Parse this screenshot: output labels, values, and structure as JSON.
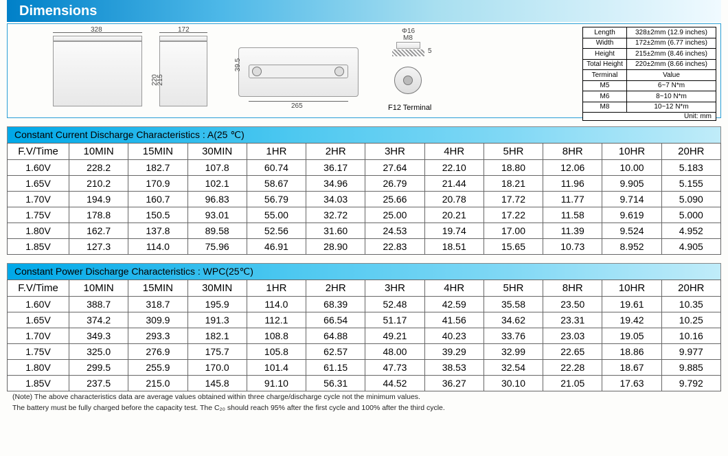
{
  "header": {
    "title": "Dimensions"
  },
  "diagram": {
    "w1": "328",
    "w2": "172",
    "h1": "220",
    "h2": "215",
    "len": "265",
    "phi": "Φ16",
    "m8": "M8",
    "off": "39.5",
    "off2": "5",
    "terminal": "F12 Terminal",
    "unit": "Unit: mm"
  },
  "dimTable": {
    "rows": [
      {
        "k": "Length",
        "v": "328±2mm (12.9 inches)"
      },
      {
        "k": "Width",
        "v": "172±2mm (6.77 inches)"
      },
      {
        "k": "Height",
        "v": "215±2mm (8.46 inches)"
      },
      {
        "k": "Total Height",
        "v": "220±2mm (8.66 inches)"
      }
    ],
    "termHeader": {
      "k": "Terminal",
      "v": "Value"
    },
    "terms": [
      {
        "k": "M5",
        "v": "6~7    N*m"
      },
      {
        "k": "M6",
        "v": "8~10   N*m"
      },
      {
        "k": "M8",
        "v": "10~12  N*m"
      }
    ]
  },
  "table1": {
    "title": "Constant Current Discharge Characteristics : A(25 ℃)",
    "head": [
      "F.V/Time",
      "10MIN",
      "15MIN",
      "30MIN",
      "1HR",
      "2HR",
      "3HR",
      "4HR",
      "5HR",
      "8HR",
      "10HR",
      "20HR"
    ],
    "rows": [
      [
        "1.60V",
        "228.2",
        "182.7",
        "107.8",
        "60.74",
        "36.17",
        "27.64",
        "22.10",
        "18.80",
        "12.06",
        "10.00",
        "5.183"
      ],
      [
        "1.65V",
        "210.2",
        "170.9",
        "102.1",
        "58.67",
        "34.96",
        "26.79",
        "21.44",
        "18.21",
        "11.96",
        "9.905",
        "5.155"
      ],
      [
        "1.70V",
        "194.9",
        "160.7",
        "96.83",
        "56.79",
        "34.03",
        "25.66",
        "20.78",
        "17.72",
        "11.77",
        "9.714",
        "5.090"
      ],
      [
        "1.75V",
        "178.8",
        "150.5",
        "93.01",
        "55.00",
        "32.72",
        "25.00",
        "20.21",
        "17.22",
        "11.58",
        "9.619",
        "5.000"
      ],
      [
        "1.80V",
        "162.7",
        "137.8",
        "89.58",
        "52.56",
        "31.60",
        "24.53",
        "19.74",
        "17.00",
        "11.39",
        "9.524",
        "4.952"
      ],
      [
        "1.85V",
        "127.3",
        "114.0",
        "75.96",
        "46.91",
        "28.90",
        "22.83",
        "18.51",
        "15.65",
        "10.73",
        "8.952",
        "4.905"
      ]
    ]
  },
  "table2": {
    "title": "Constant Power Discharge Characteristics : WPC(25℃)",
    "head": [
      "F.V/Time",
      "10MIN",
      "15MIN",
      "30MIN",
      "1HR",
      "2HR",
      "3HR",
      "4HR",
      "5HR",
      "8HR",
      "10HR",
      "20HR"
    ],
    "rows": [
      [
        "1.60V",
        "388.7",
        "318.7",
        "195.9",
        "114.0",
        "68.39",
        "52.48",
        "42.59",
        "35.58",
        "23.50",
        "19.61",
        "10.35"
      ],
      [
        "1.65V",
        "374.2",
        "309.9",
        "191.3",
        "112.1",
        "66.54",
        "51.17",
        "41.56",
        "34.62",
        "23.31",
        "19.42",
        "10.25"
      ],
      [
        "1.70V",
        "349.3",
        "293.3",
        "182.1",
        "108.8",
        "64.88",
        "49.21",
        "40.23",
        "33.76",
        "23.03",
        "19.05",
        "10.16"
      ],
      [
        "1.75V",
        "325.0",
        "276.9",
        "175.7",
        "105.8",
        "62.57",
        "48.00",
        "39.29",
        "32.99",
        "22.65",
        "18.86",
        "9.977"
      ],
      [
        "1.80V",
        "299.5",
        "255.9",
        "170.0",
        "101.4",
        "61.15",
        "47.73",
        "38.53",
        "32.54",
        "22.28",
        "18.67",
        "9.885"
      ],
      [
        "1.85V",
        "237.5",
        "215.0",
        "145.8",
        "91.10",
        "56.31",
        "44.52",
        "36.27",
        "30.10",
        "21.05",
        "17.63",
        "9.792"
      ]
    ]
  },
  "notes": [
    "(Note) The above characteristics data are average values obtained within three charge/discharge cycle not the minimum values.",
    "The battery must be fully charged before the capacity test.  The C₂₀ should reach 95% after the first cycle and 100% after the third cycle."
  ]
}
